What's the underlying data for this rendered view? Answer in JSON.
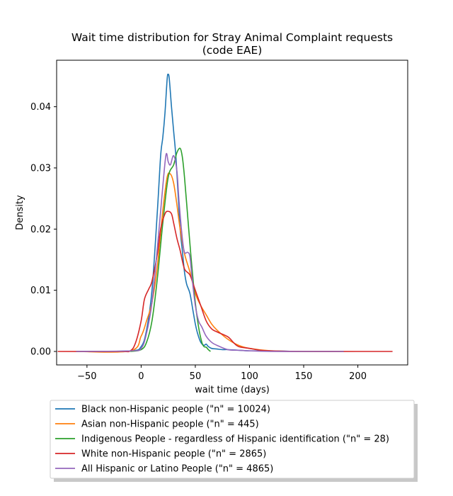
{
  "chart_data": {
    "type": "line",
    "title": "Wait time distribution  for Stray Animal Complaint requests",
    "subtitle": "(code EAE)",
    "xlabel": "wait time (days)",
    "ylabel": "Density",
    "xlim": [
      -78,
      246
    ],
    "ylim": [
      -0.0022,
      0.0476
    ],
    "xticks": [
      -50,
      0,
      50,
      100,
      150,
      200
    ],
    "xtick_labels": [
      "−50",
      "0",
      "50",
      "100",
      "150",
      "200"
    ],
    "yticks": [
      0.0,
      0.01,
      0.02,
      0.03,
      0.04
    ],
    "ytick_labels": [
      "0.00",
      "0.01",
      "0.02",
      "0.03",
      "0.04"
    ],
    "grid": false,
    "legend_position": "below",
    "series": [
      {
        "name": "Black non-Hispanic people (\"n\" = 10024)",
        "color": "#1f77b4",
        "x": [
          -60,
          -10,
          0,
          5,
          10,
          15,
          18,
          20,
          22,
          24,
          25,
          26,
          28,
          30,
          32,
          34,
          36,
          38,
          40,
          42,
          45,
          48,
          50,
          52,
          55,
          58,
          60,
          62,
          65,
          70,
          75,
          80,
          90,
          100,
          120,
          150,
          187
        ],
        "y": [
          0,
          0.0001,
          0.0008,
          0.0035,
          0.01,
          0.023,
          0.032,
          0.035,
          0.039,
          0.0445,
          0.0453,
          0.0445,
          0.04,
          0.036,
          0.032,
          0.026,
          0.02,
          0.0165,
          0.013,
          0.011,
          0.0095,
          0.0065,
          0.0045,
          0.003,
          0.0015,
          0.001,
          0.0012,
          0.0008,
          0.0005,
          0.0004,
          0.0003,
          0.0003,
          0.0002,
          0.0001,
          0.0001,
          0,
          0
        ]
      },
      {
        "name": "Asian non-Hispanic people (\"n\" = 445)",
        "color": "#ff7f0e",
        "x": [
          -60,
          -10,
          0,
          5,
          10,
          15,
          20,
          24,
          27,
          30,
          33,
          36,
          40,
          45,
          50,
          55,
          60,
          65,
          70,
          80,
          90,
          100,
          120,
          150,
          187
        ],
        "y": [
          0,
          0.0001,
          0.0025,
          0.005,
          0.008,
          0.014,
          0.023,
          0.0285,
          0.029,
          0.0275,
          0.024,
          0.02,
          0.016,
          0.013,
          0.0095,
          0.0075,
          0.006,
          0.0045,
          0.0035,
          0.002,
          0.001,
          0.0005,
          0.0001,
          0,
          0
        ]
      },
      {
        "name": "Indigenous People - regardless of Hispanic identification (\"n\" = 28)",
        "color": "#2ca02c",
        "x": [
          -10,
          0,
          5,
          10,
          15,
          20,
          25,
          30,
          33,
          36,
          38,
          40,
          43,
          46,
          50,
          53,
          56,
          58,
          60,
          62,
          64
        ],
        "y": [
          0,
          0.0003,
          0.0015,
          0.005,
          0.012,
          0.021,
          0.0285,
          0.0305,
          0.0325,
          0.0332,
          0.0318,
          0.0285,
          0.022,
          0.0155,
          0.008,
          0.004,
          0.0015,
          0.0008,
          0.0007,
          0.0003,
          0
        ]
      },
      {
        "name": "White non-Hispanic people (\"n\" = 2865)",
        "color": "#d62728",
        "x": [
          -77,
          -20,
          -10,
          -5,
          0,
          3,
          7,
          10,
          15,
          18,
          22,
          25,
          28,
          30,
          33,
          36,
          40,
          45,
          50,
          55,
          60,
          65,
          70,
          80,
          85,
          90,
          100,
          110,
          120,
          150,
          200,
          232
        ],
        "y": [
          0,
          0,
          0.0001,
          0.0015,
          0.005,
          0.0085,
          0.0102,
          0.0115,
          0.016,
          0.02,
          0.0225,
          0.0229,
          0.0225,
          0.021,
          0.0185,
          0.0165,
          0.0135,
          0.0125,
          0.01,
          0.0075,
          0.005,
          0.0037,
          0.0032,
          0.0024,
          0.0015,
          0.0008,
          0.0005,
          0.0002,
          0.0001,
          0,
          0,
          0
        ]
      },
      {
        "name": "All Hispanic or Latino People (\"n\" = 4865)",
        "color": "#9467bd",
        "x": [
          -60,
          -10,
          0,
          5,
          10,
          15,
          20,
          23,
          25,
          27,
          30,
          33,
          35,
          38,
          40,
          43,
          45,
          47,
          50,
          53,
          56,
          60,
          65,
          70,
          80,
          90,
          100,
          120,
          150,
          187
        ],
        "y": [
          0,
          0.0001,
          0.0005,
          0.003,
          0.008,
          0.017,
          0.027,
          0.0322,
          0.031,
          0.0305,
          0.032,
          0.0295,
          0.0245,
          0.0185,
          0.0162,
          0.0162,
          0.0155,
          0.012,
          0.0075,
          0.005,
          0.004,
          0.0025,
          0.0015,
          0.001,
          0.0003,
          0.0002,
          0.0001,
          0,
          0,
          0
        ]
      }
    ]
  }
}
